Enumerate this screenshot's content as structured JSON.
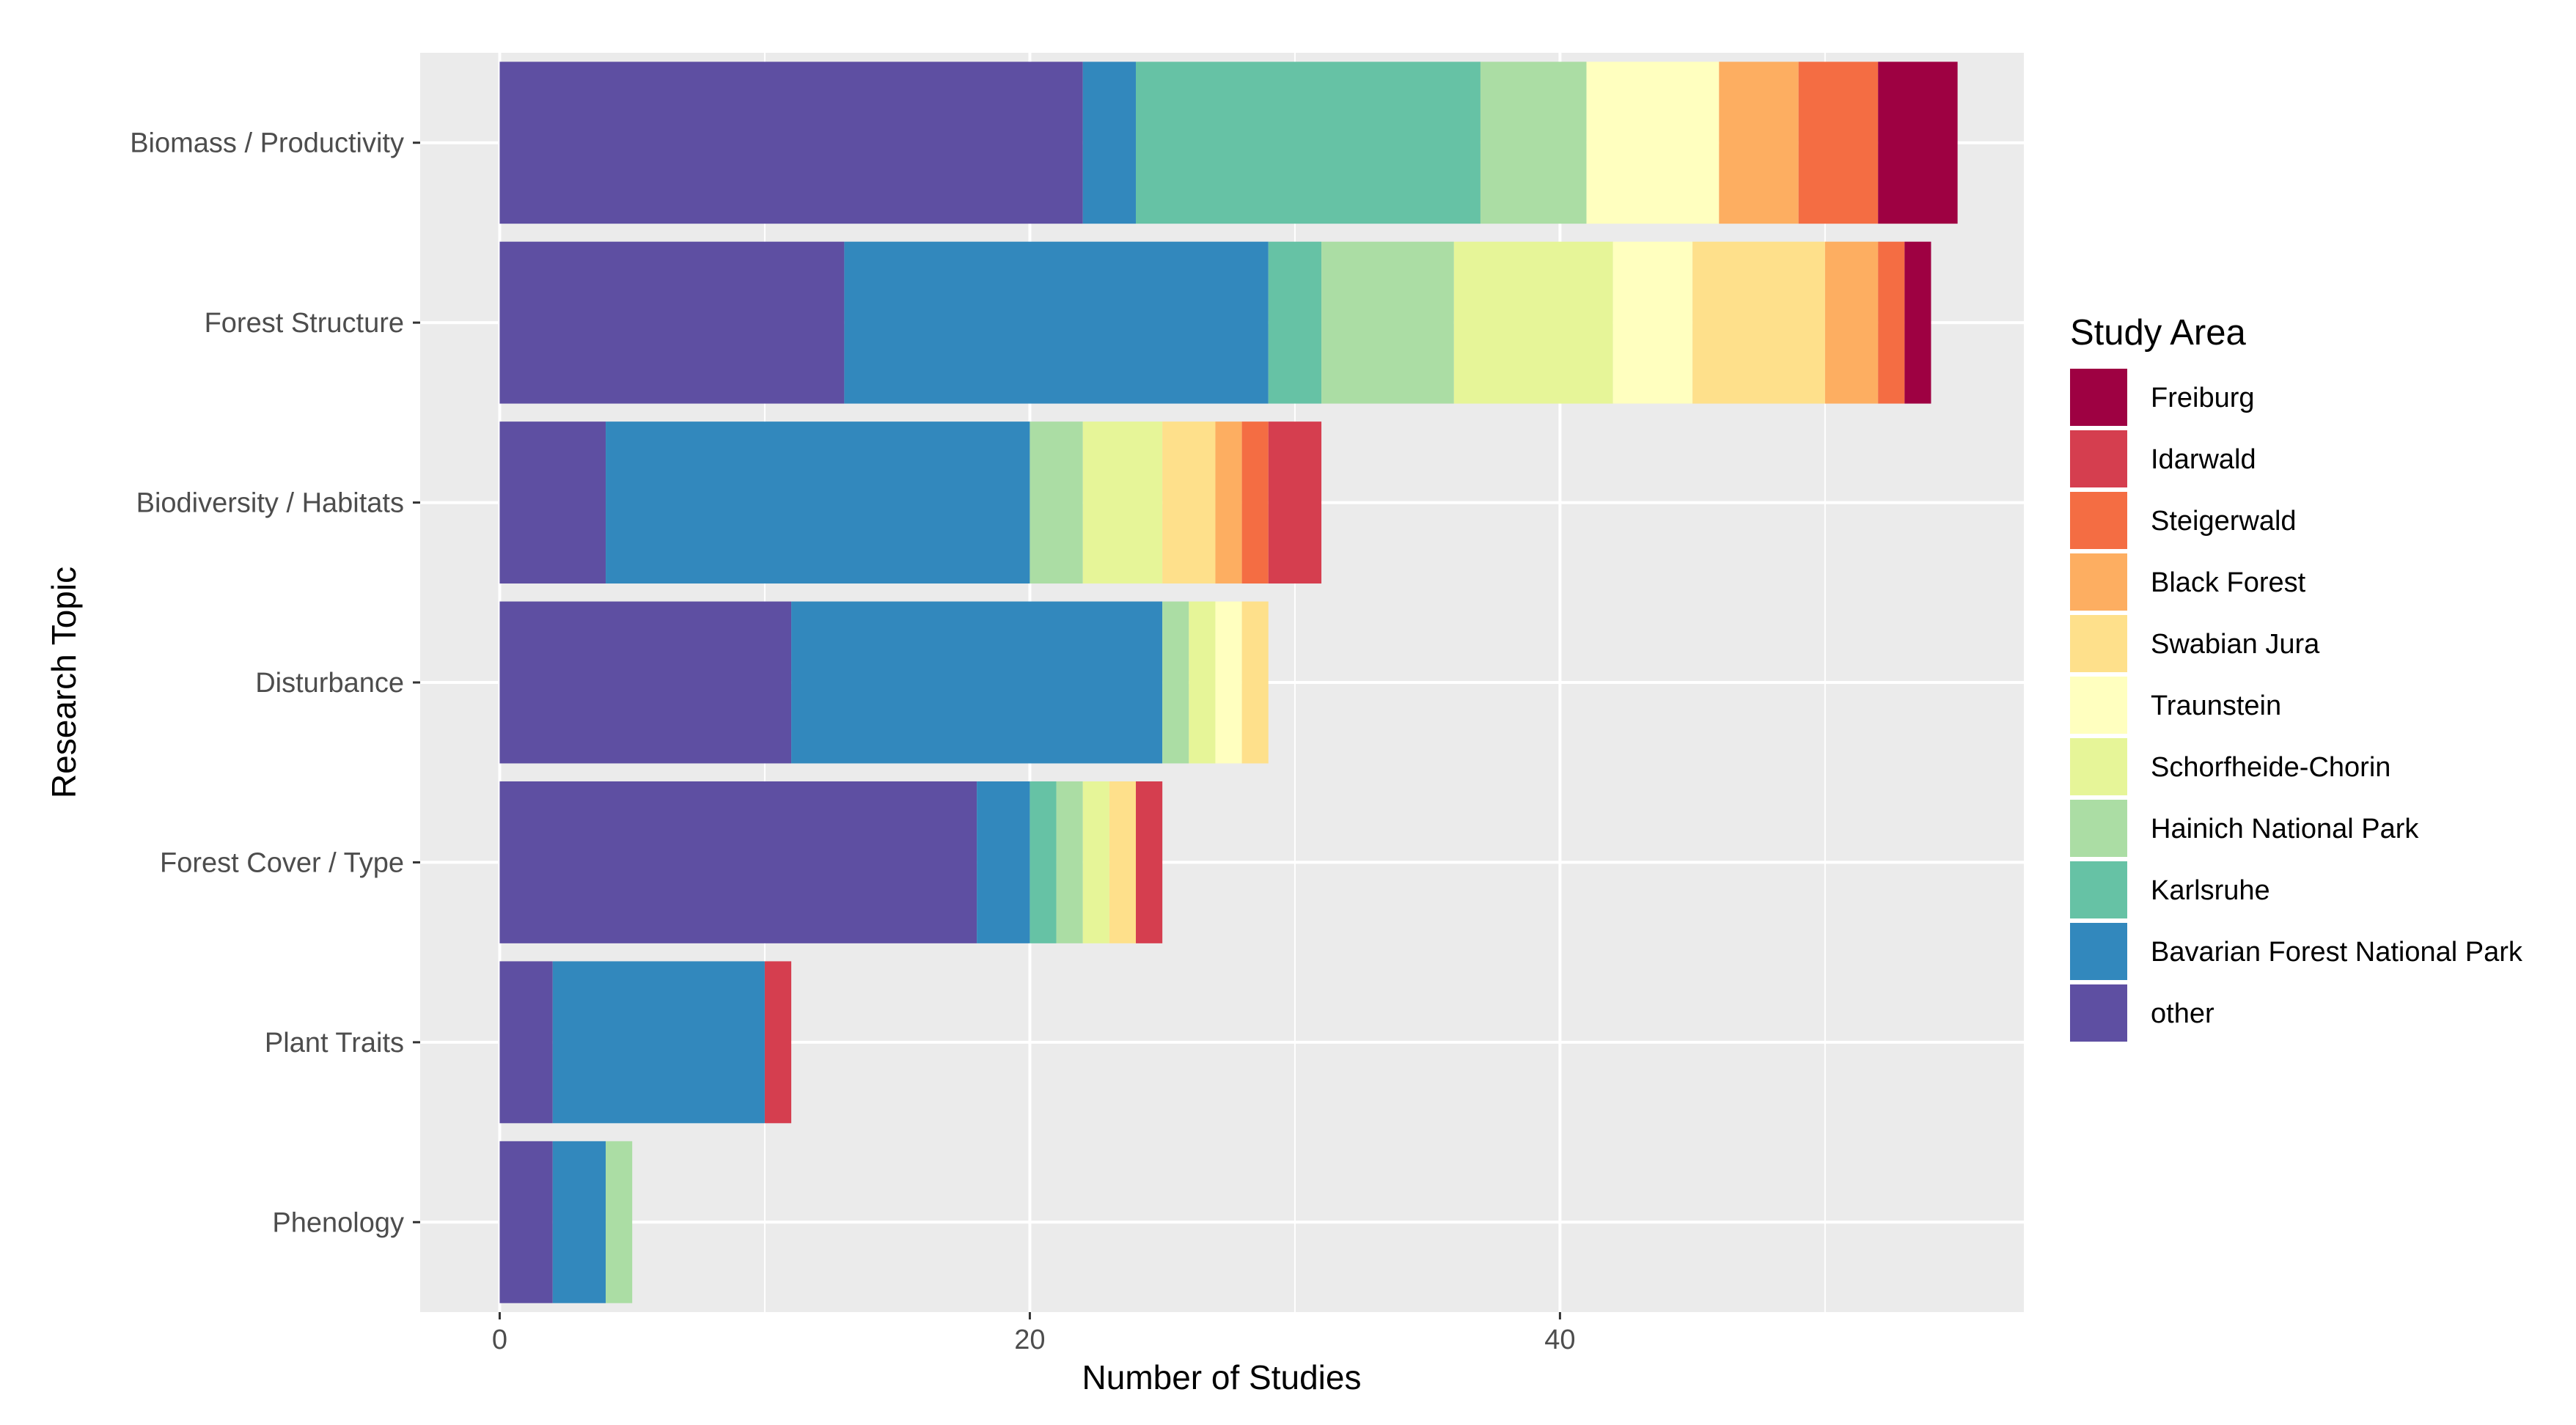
{
  "chart_data": {
    "type": "bar",
    "orientation": "horizontal",
    "stacked": true,
    "xlabel": "Number of Studies",
    "ylabel": "Research Topic",
    "xlim": [
      -3.0,
      57.5
    ],
    "x_ticks": [
      0,
      20,
      40
    ],
    "x_tick_labels": [
      "0",
      "20",
      "40"
    ],
    "grid": true,
    "legend_position": "right",
    "legend_title": "Study Area",
    "categories": [
      "Biomass / Productivity",
      "Forest Structure",
      "Biodiversity / Habitats",
      "Disturbance",
      "Forest Cover / Type",
      "Plant Traits",
      "Phenology"
    ],
    "series": [
      {
        "name": "other",
        "color": "#5e4fa2",
        "values": [
          22,
          13,
          4,
          11,
          18,
          2,
          2
        ]
      },
      {
        "name": "Bavarian Forest National Park",
        "color": "#3288bd",
        "values": [
          2,
          16,
          16,
          14,
          2,
          8,
          2
        ]
      },
      {
        "name": "Karlsruhe",
        "color": "#66c2a5",
        "values": [
          13,
          2,
          0,
          0,
          1,
          0,
          0
        ]
      },
      {
        "name": "Hainich National Park",
        "color": "#abdda4",
        "values": [
          4,
          5,
          2,
          1,
          1,
          0,
          1
        ]
      },
      {
        "name": "Schorfheide-Chorin",
        "color": "#e6f598",
        "values": [
          0,
          6,
          3,
          1,
          1,
          0,
          0
        ]
      },
      {
        "name": "Traunstein",
        "color": "#ffffbf",
        "values": [
          5,
          3,
          0,
          1,
          0,
          0,
          0
        ]
      },
      {
        "name": "Swabian Jura",
        "color": "#fee08b",
        "values": [
          0,
          5,
          2,
          1,
          1,
          0,
          0
        ]
      },
      {
        "name": "Black Forest",
        "color": "#fdae61",
        "values": [
          3,
          2,
          1,
          0,
          0,
          0,
          0
        ]
      },
      {
        "name": "Steigerwald",
        "color": "#f46d43",
        "values": [
          3,
          1,
          1,
          0,
          0,
          0,
          0
        ]
      },
      {
        "name": "Idarwald",
        "color": "#d53e4f",
        "values": [
          0,
          0,
          2,
          0,
          1,
          1,
          0
        ]
      },
      {
        "name": "Freiburg",
        "color": "#9e0142",
        "values": [
          3,
          1,
          0,
          0,
          0,
          0,
          0
        ]
      }
    ],
    "legend_order": [
      "Freiburg",
      "Idarwald",
      "Steigerwald",
      "Black Forest",
      "Swabian Jura",
      "Traunstein",
      "Schorfheide-Chorin",
      "Hainich National Park",
      "Karlsruhe",
      "Bavarian Forest National Park",
      "other"
    ]
  }
}
